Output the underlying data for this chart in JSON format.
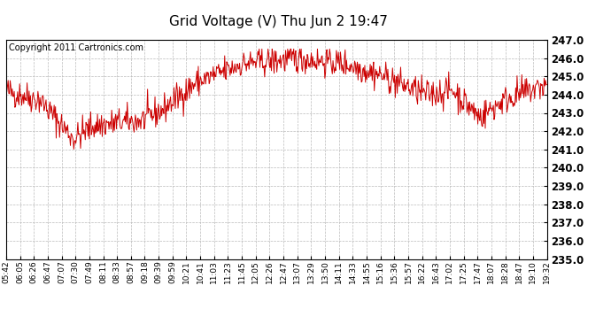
{
  "title": "Grid Voltage (V) Thu Jun 2 19:47",
  "copyright": "Copyright 2011 Cartronics.com",
  "line_color": "#cc0000",
  "background_color": "#ffffff",
  "plot_bg_color": "#ffffff",
  "grid_color": "#bbbbbb",
  "ylim": [
    235.0,
    247.0
  ],
  "yticks": [
    235.0,
    236.0,
    237.0,
    238.0,
    239.0,
    240.0,
    241.0,
    242.0,
    243.0,
    244.0,
    245.0,
    246.0,
    247.0
  ],
  "x_labels": [
    "05:42",
    "06:05",
    "06:26",
    "06:47",
    "07:07",
    "07:30",
    "07:49",
    "08:11",
    "08:33",
    "08:57",
    "09:18",
    "09:39",
    "09:59",
    "10:21",
    "10:41",
    "11:03",
    "11:23",
    "11:45",
    "12:05",
    "12:26",
    "12:47",
    "13:07",
    "13:29",
    "13:50",
    "14:11",
    "14:33",
    "14:55",
    "15:16",
    "15:36",
    "15:57",
    "16:22",
    "16:43",
    "17:02",
    "17:25",
    "17:47",
    "18:07",
    "18:28",
    "18:47",
    "19:10",
    "19:32"
  ],
  "seed": 42,
  "n_points": 800,
  "title_fontsize": 11,
  "ylabel_fontsize": 8.5,
  "xlabel_fontsize": 6.5,
  "copyright_fontsize": 7
}
